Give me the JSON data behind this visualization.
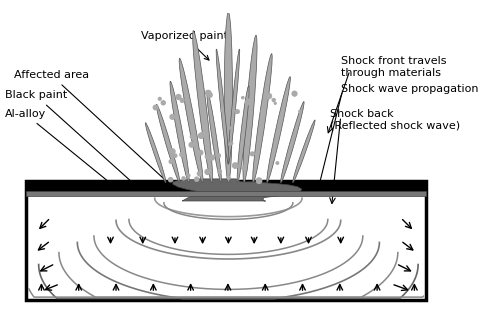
{
  "title": "",
  "bg_color": "#ffffff",
  "box_color": "#000000",
  "label_vaporized": "Vaporized paint",
  "label_affected": "Affected area",
  "label_black_paint": "Black paint",
  "label_al_alloy": "Al-alloy",
  "label_shock_front": "Shock front travels\nthrough materials",
  "label_shock_wave": "Shock wave propagation",
  "label_shock_back": "Shock back\n(Reflected shock wave)",
  "gray_dark": "#555555",
  "gray_mid": "#888888",
  "gray_light": "#bbbbbb",
  "gray_surface": "#999999",
  "black": "#000000",
  "white": "#ffffff"
}
